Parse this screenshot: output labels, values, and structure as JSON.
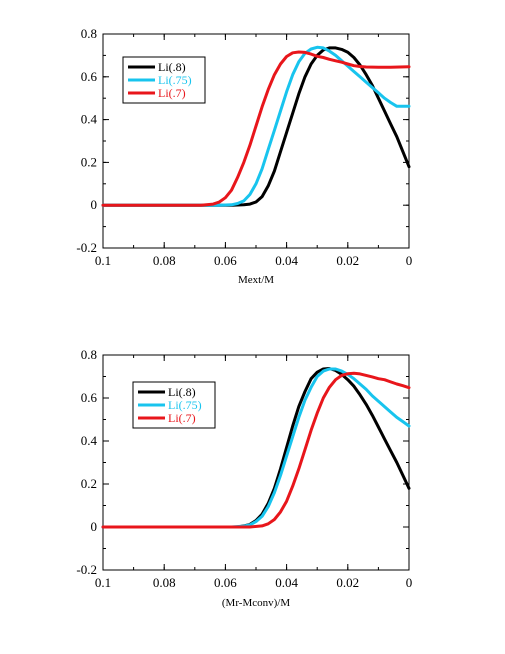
{
  "chart_data": [
    {
      "type": "line",
      "title": "",
      "xlabel": "Mext/M",
      "ylabel": "",
      "xlim": [
        0.1,
        0
      ],
      "ylim": [
        -0.2,
        0.8
      ],
      "x_reversed": true,
      "xticks": [
        "0.1",
        "0.08",
        "0.06",
        "0.04",
        "0.02",
        "0"
      ],
      "yticks": [
        "-0.2",
        "0",
        "0.2",
        "0.4",
        "0.6",
        "0.8"
      ],
      "grid": false,
      "legend": "top-left",
      "series": [
        {
          "name": "Li(.8)",
          "color": "#000000",
          "x": [
            0.1,
            0.058,
            0.054,
            0.052,
            0.05,
            0.048,
            0.046,
            0.044,
            0.042,
            0.04,
            0.038,
            0.036,
            0.034,
            0.032,
            0.03,
            0.028,
            0.026,
            0.024,
            0.022,
            0.02,
            0.018,
            0.016,
            0.014,
            0.012,
            0.01,
            0.008,
            0.006,
            0.004,
            0.002,
            0.0
          ],
          "y": [
            0,
            0,
            0.002,
            0.005,
            0.015,
            0.04,
            0.09,
            0.16,
            0.25,
            0.34,
            0.43,
            0.52,
            0.6,
            0.66,
            0.7,
            0.725,
            0.735,
            0.735,
            0.728,
            0.715,
            0.69,
            0.655,
            0.61,
            0.56,
            0.5,
            0.44,
            0.38,
            0.32,
            0.25,
            0.18
          ]
        },
        {
          "name": "Li(.75)",
          "color": "#18c4ee",
          "x": [
            0.1,
            0.062,
            0.058,
            0.056,
            0.054,
            0.052,
            0.05,
            0.048,
            0.046,
            0.044,
            0.042,
            0.04,
            0.038,
            0.036,
            0.034,
            0.032,
            0.03,
            0.028,
            0.026,
            0.024,
            0.022,
            0.02,
            0.018,
            0.016,
            0.014,
            0.012,
            0.01,
            0.008,
            0.006,
            0.004,
            0.0
          ],
          "y": [
            0,
            0,
            0.002,
            0.008,
            0.02,
            0.05,
            0.1,
            0.17,
            0.26,
            0.35,
            0.44,
            0.53,
            0.61,
            0.67,
            0.71,
            0.73,
            0.738,
            0.735,
            0.72,
            0.7,
            0.675,
            0.65,
            0.625,
            0.6,
            0.575,
            0.55,
            0.525,
            0.5,
            0.48,
            0.462,
            0.462
          ]
        },
        {
          "name": "Li(.7)",
          "color": "#e8161b",
          "x": [
            0.1,
            0.068,
            0.064,
            0.062,
            0.06,
            0.058,
            0.056,
            0.054,
            0.052,
            0.05,
            0.048,
            0.046,
            0.044,
            0.042,
            0.04,
            0.038,
            0.036,
            0.034,
            0.032,
            0.03,
            0.028,
            0.026,
            0.024,
            0.022,
            0.02,
            0.018,
            0.016,
            0.014,
            0.01,
            0.006,
            0.0
          ],
          "y": [
            0,
            0,
            0.005,
            0.015,
            0.035,
            0.07,
            0.13,
            0.2,
            0.28,
            0.37,
            0.46,
            0.54,
            0.61,
            0.66,
            0.695,
            0.712,
            0.716,
            0.714,
            0.706,
            0.696,
            0.69,
            0.682,
            0.675,
            0.668,
            0.66,
            0.652,
            0.648,
            0.646,
            0.645,
            0.645,
            0.647
          ]
        }
      ]
    },
    {
      "type": "line",
      "title": "",
      "xlabel": "(Mr-Mconv)/M",
      "ylabel": "",
      "xlim": [
        0.1,
        0
      ],
      "ylim": [
        -0.2,
        0.8
      ],
      "x_reversed": true,
      "xticks": [
        "0.1",
        "0.08",
        "0.06",
        "0.04",
        "0.02",
        "0"
      ],
      "yticks": [
        "-0.2",
        "0",
        "0.2",
        "0.4",
        "0.6",
        "0.8"
      ],
      "grid": false,
      "legend": "top-left",
      "series": [
        {
          "name": "Li(.8)",
          "color": "#000000",
          "x": [
            0.1,
            0.056,
            0.054,
            0.052,
            0.05,
            0.048,
            0.046,
            0.044,
            0.042,
            0.04,
            0.038,
            0.036,
            0.034,
            0.032,
            0.03,
            0.028,
            0.026,
            0.024,
            0.022,
            0.02,
            0.018,
            0.016,
            0.014,
            0.012,
            0.01,
            0.008,
            0.006,
            0.004,
            0.002,
            0.0
          ],
          "y": [
            0,
            0,
            0.005,
            0.012,
            0.03,
            0.06,
            0.11,
            0.18,
            0.27,
            0.37,
            0.47,
            0.56,
            0.63,
            0.69,
            0.72,
            0.735,
            0.737,
            0.728,
            0.71,
            0.685,
            0.655,
            0.615,
            0.57,
            0.52,
            0.465,
            0.41,
            0.355,
            0.3,
            0.24,
            0.18
          ]
        },
        {
          "name": "Li(.75)",
          "color": "#18c4ee",
          "x": [
            0.1,
            0.058,
            0.054,
            0.052,
            0.05,
            0.048,
            0.046,
            0.044,
            0.042,
            0.04,
            0.038,
            0.036,
            0.034,
            0.032,
            0.03,
            0.028,
            0.026,
            0.024,
            0.022,
            0.02,
            0.018,
            0.016,
            0.014,
            0.012,
            0.01,
            0.008,
            0.006,
            0.004,
            0.002,
            0.0
          ],
          "y": [
            0,
            0,
            0.004,
            0.01,
            0.025,
            0.05,
            0.095,
            0.16,
            0.24,
            0.33,
            0.42,
            0.51,
            0.59,
            0.65,
            0.7,
            0.725,
            0.735,
            0.735,
            0.725,
            0.71,
            0.69,
            0.665,
            0.64,
            0.61,
            0.585,
            0.56,
            0.535,
            0.51,
            0.49,
            0.47
          ]
        },
        {
          "name": "Li(.7)",
          "color": "#e8161b",
          "x": [
            0.1,
            0.052,
            0.048,
            0.046,
            0.044,
            0.042,
            0.04,
            0.038,
            0.036,
            0.034,
            0.032,
            0.03,
            0.028,
            0.026,
            0.024,
            0.022,
            0.02,
            0.018,
            0.016,
            0.014,
            0.012,
            0.01,
            0.008,
            0.006,
            0.004,
            0.002,
            0.0
          ],
          "y": [
            0,
            0,
            0.005,
            0.015,
            0.035,
            0.07,
            0.12,
            0.19,
            0.27,
            0.36,
            0.45,
            0.53,
            0.6,
            0.65,
            0.685,
            0.705,
            0.713,
            0.715,
            0.712,
            0.705,
            0.698,
            0.69,
            0.685,
            0.675,
            0.665,
            0.657,
            0.648
          ]
        }
      ]
    }
  ]
}
